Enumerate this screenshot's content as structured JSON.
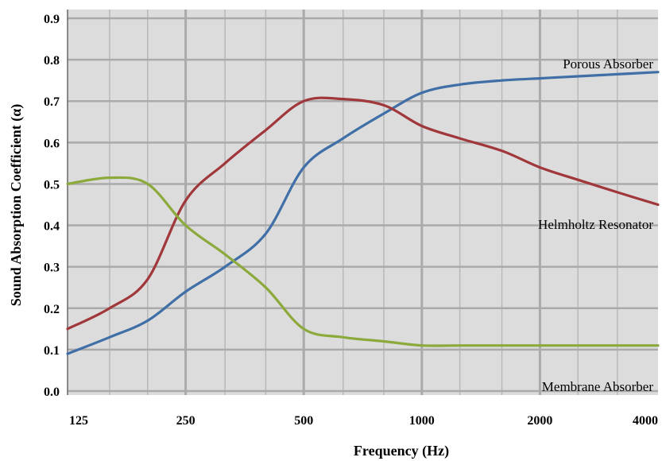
{
  "chart_data": {
    "type": "line",
    "title": "",
    "xlabel": "Frequency (Hz)",
    "ylabel": "Sound Absorption Coefficient (α)",
    "x_scale": "log",
    "x_ticks": [
      "125",
      "250",
      "500",
      "1000",
      "2000",
      "4000"
    ],
    "x_tick_values": [
      125,
      250,
      500,
      1000,
      2000,
      4000
    ],
    "y_ticks": [
      "0.0",
      "0.1",
      "0.2",
      "0.3",
      "0.4",
      "0.5",
      "0.6",
      "0.7",
      "0.8",
      "0.9"
    ],
    "ylim": [
      0,
      0.9
    ],
    "grid": true,
    "background_color": "#dcdcdc",
    "grid_color": "#aaaaaa",
    "series": [
      {
        "name": "Porous Absorber",
        "color": "#3f6fa6",
        "x": [
          125,
          160,
          200,
          250,
          315,
          400,
          500,
          630,
          800,
          1000,
          1250,
          1600,
          2000,
          2500,
          3150,
          4000
        ],
        "y": [
          0.09,
          0.13,
          0.17,
          0.24,
          0.3,
          0.38,
          0.54,
          0.61,
          0.67,
          0.72,
          0.74,
          0.75,
          0.755,
          0.76,
          0.765,
          0.77
        ]
      },
      {
        "name": "Helmholtz Resonator",
        "color": "#a0373a",
        "x": [
          125,
          160,
          200,
          250,
          315,
          400,
          500,
          630,
          800,
          1000,
          1250,
          1600,
          2000,
          2500,
          3150,
          4000
        ],
        "y": [
          0.15,
          0.2,
          0.27,
          0.46,
          0.55,
          0.63,
          0.7,
          0.705,
          0.69,
          0.64,
          0.61,
          0.58,
          0.54,
          0.51,
          0.48,
          0.45
        ]
      },
      {
        "name": "Membrane Absorber",
        "color": "#8caa3c",
        "x": [
          125,
          160,
          200,
          250,
          315,
          400,
          500,
          630,
          800,
          1000,
          1250,
          1600,
          2000,
          2500,
          3150,
          4000
        ],
        "y": [
          0.5,
          0.515,
          0.5,
          0.4,
          0.33,
          0.25,
          0.15,
          0.13,
          0.12,
          0.11,
          0.11,
          0.11,
          0.11,
          0.11,
          0.11,
          0.11
        ]
      }
    ]
  }
}
